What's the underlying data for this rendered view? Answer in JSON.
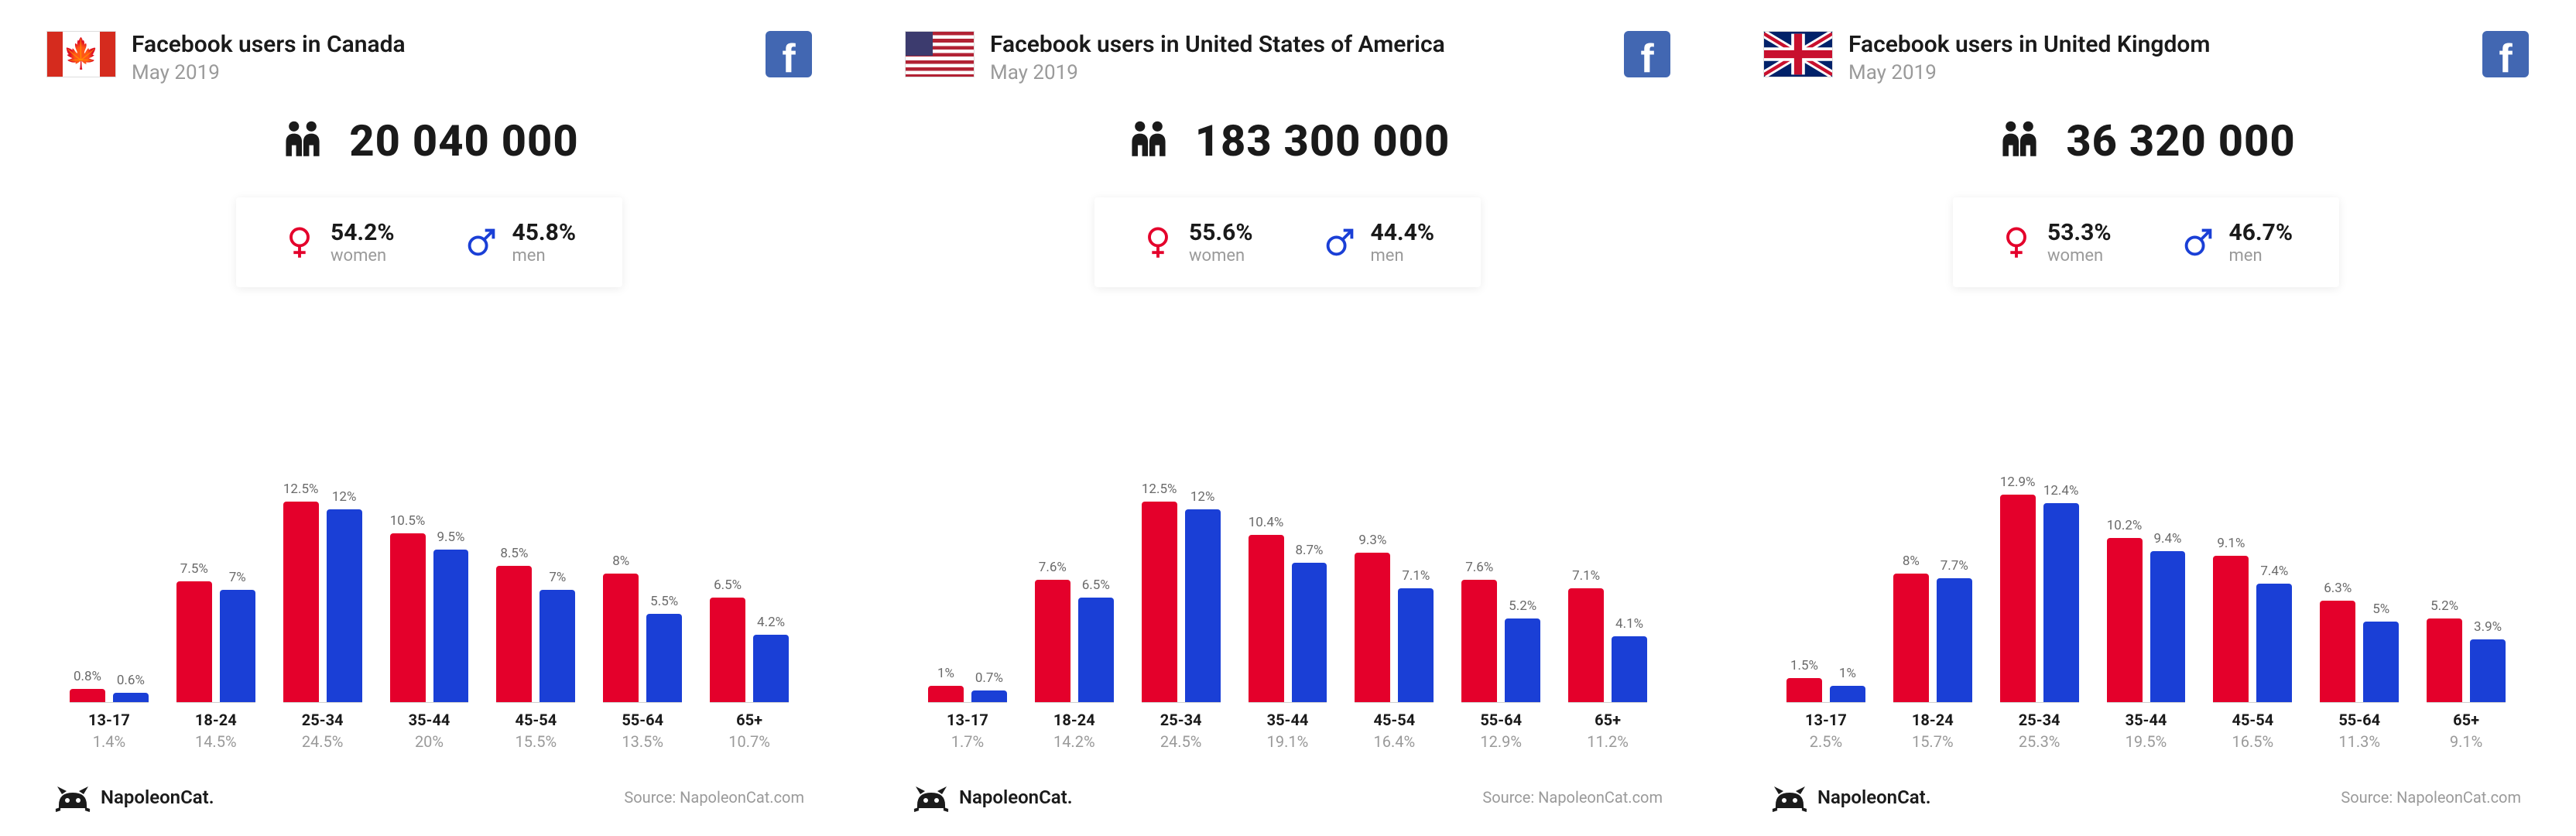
{
  "colors": {
    "women": "#e4002b",
    "men": "#1a3fd6",
    "text_dark": "#1a1a1a",
    "text_light": "#9a9a9a"
  },
  "chart": {
    "type": "bar",
    "y_max_pct": 13.5,
    "age_ranges": [
      "13-17",
      "18-24",
      "25-34",
      "35-44",
      "45-54",
      "55-64",
      "65+"
    ]
  },
  "panels": [
    {
      "country": "Canada",
      "flag": "ca",
      "title": "Facebook users in Canada",
      "subtitle": "May 2019",
      "total": "20 040 000",
      "women_pct": "54.2%",
      "men_pct": "45.8%",
      "groups": [
        {
          "women": 0.8,
          "men": 0.6,
          "total": "1.4%"
        },
        {
          "women": 7.5,
          "men": 7,
          "total": "14.5%"
        },
        {
          "women": 12.5,
          "men": 12,
          "total": "24.5%"
        },
        {
          "women": 10.5,
          "men": 9.5,
          "total": "20%"
        },
        {
          "women": 8.5,
          "men": 7,
          "total": "15.5%"
        },
        {
          "women": 8,
          "men": 5.5,
          "total": "13.5%"
        },
        {
          "women": 6.5,
          "men": 4.2,
          "total": "10.7%"
        }
      ]
    },
    {
      "country": "United States of America",
      "flag": "us",
      "title": "Facebook users in United States of America",
      "subtitle": "May 2019",
      "total": "183 300 000",
      "women_pct": "55.6%",
      "men_pct": "44.4%",
      "groups": [
        {
          "women": 1,
          "men": 0.7,
          "total": "1.7%"
        },
        {
          "women": 7.6,
          "men": 6.5,
          "total": "14.2%"
        },
        {
          "women": 12.5,
          "men": 12,
          "total": "24.5%"
        },
        {
          "women": 10.4,
          "men": 8.7,
          "total": "19.1%"
        },
        {
          "women": 9.3,
          "men": 7.1,
          "total": "16.4%"
        },
        {
          "women": 7.6,
          "men": 5.2,
          "total": "12.9%"
        },
        {
          "women": 7.1,
          "men": 4.1,
          "total": "11.2%"
        }
      ]
    },
    {
      "country": "United Kingdom",
      "flag": "uk",
      "title": "Facebook users in United Kingdom",
      "subtitle": "May 2019",
      "total": "36 320 000",
      "women_pct": "53.3%",
      "men_pct": "46.7%",
      "groups": [
        {
          "women": 1.5,
          "men": 1,
          "total": "2.5%"
        },
        {
          "women": 8,
          "men": 7.7,
          "total": "15.7%"
        },
        {
          "women": 12.9,
          "men": 12.4,
          "total": "25.3%"
        },
        {
          "women": 10.2,
          "men": 9.4,
          "total": "19.5%"
        },
        {
          "women": 9.1,
          "men": 7.4,
          "total": "16.5%"
        },
        {
          "women": 6.3,
          "men": 5,
          "total": "11.3%"
        },
        {
          "women": 5.2,
          "men": 3.9,
          "total": "9.1%"
        }
      ]
    }
  ],
  "labels": {
    "women": "women",
    "men": "men",
    "source": "Source: NapoleonCat.com",
    "brand": "NapoleonCat."
  }
}
